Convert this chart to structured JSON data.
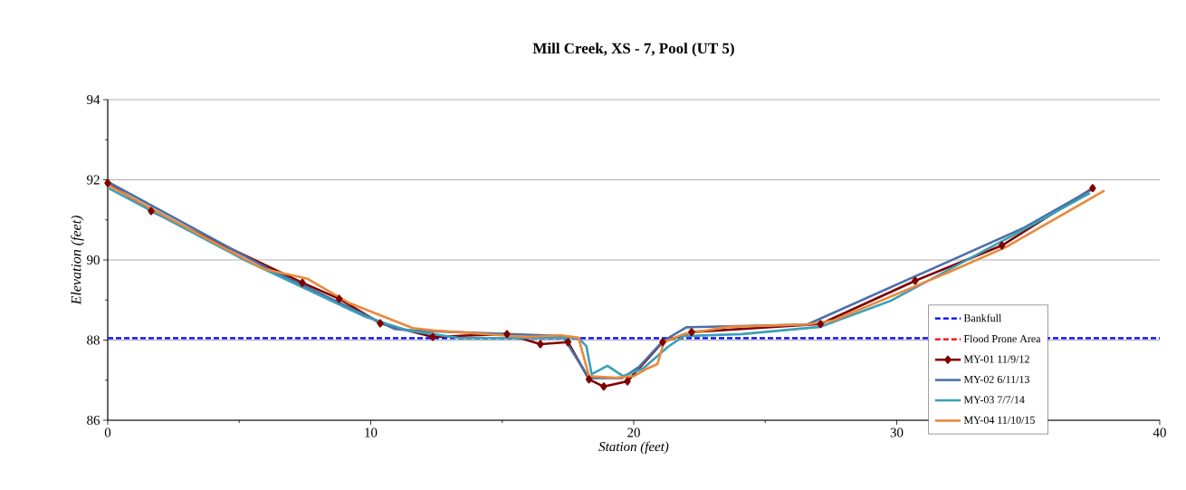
{
  "chart_data": {
    "type": "line",
    "title": "Mill Creek, XS - 7, Pool (UT 5)",
    "xlabel": "Station (feet)",
    "ylabel": "Elevation (feet)",
    "xlim": [
      0,
      40
    ],
    "xticks": [
      0,
      10,
      20,
      30,
      40
    ],
    "ylim": [
      86,
      94
    ],
    "yticks": [
      86,
      88,
      90,
      92,
      94
    ],
    "grid": "y",
    "legend": "bottom right",
    "series": [
      {
        "name": "Bankfull",
        "color": "#0000ff",
        "line_style": "dashed",
        "x": [
          0,
          40
        ],
        "values": [
          88.05,
          88.05
        ]
      },
      {
        "name": "Flood Prone Area",
        "color": "#ff0000",
        "line_style": "dashed"
      },
      {
        "name": "MY-01 11/9/12",
        "color": "#800000",
        "marker": "diamond",
        "x": [
          0,
          1.65,
          7.4,
          8.8,
          10.36,
          12.36,
          15.18,
          16.45,
          17.5,
          18.3,
          18.86,
          19.76,
          21.1,
          22.2,
          27.1,
          30.7,
          34,
          37.45
        ],
        "values": [
          91.92,
          91.22,
          89.43,
          89.03,
          88.42,
          88.08,
          88.15,
          87.9,
          87.95,
          87.02,
          86.84,
          86.97,
          87.95,
          88.2,
          88.4,
          89.48,
          90.36,
          91.79
        ]
      },
      {
        "name": "MY-02 6/11/13",
        "color": "#4a70a8",
        "x": [
          0,
          6.1,
          10.9,
          11.6,
          17.3,
          18.3,
          19.55,
          20.2,
          21.1,
          22,
          26.6,
          34.8,
          37.35
        ],
        "values": [
          91.95,
          89.78,
          88.28,
          88.24,
          88.1,
          87.05,
          87.05,
          87.33,
          87.97,
          88.32,
          88.39,
          90.79,
          91.74
        ]
      },
      {
        "name": "MY-03 7/7/14",
        "color": "#3c9fb8",
        "x": [
          0,
          5.2,
          9.8,
          11.4,
          13.4,
          17.9,
          18.2,
          18.4,
          19,
          19.6,
          20.35,
          21.3,
          21.9,
          24.1,
          27.1,
          29.8,
          34.8,
          37.35
        ],
        "values": [
          91.8,
          90.0,
          88.58,
          88.24,
          88.05,
          88.05,
          87.85,
          87.15,
          87.36,
          87.1,
          87.29,
          87.83,
          88.1,
          88.15,
          88.33,
          88.99,
          90.75,
          91.67
        ]
      },
      {
        "name": "MY-04 11/10/15",
        "color": "#e8893c",
        "x": [
          0,
          5.9,
          7.6,
          9.2,
          11.6,
          12.4,
          15.9,
          17.25,
          17.9,
          18.3,
          19.3,
          20,
          20.45,
          20.9,
          21.15,
          21.9,
          23.6,
          26.6,
          27.6,
          32,
          34.15,
          37.9
        ],
        "values": [
          91.87,
          89.78,
          89.53,
          88.92,
          88.3,
          88.24,
          88.08,
          88.12,
          88.06,
          87.1,
          87.06,
          87.1,
          87.27,
          87.4,
          87.95,
          88.15,
          88.33,
          88.39,
          88.49,
          89.7,
          90.32,
          91.73
        ]
      }
    ]
  }
}
